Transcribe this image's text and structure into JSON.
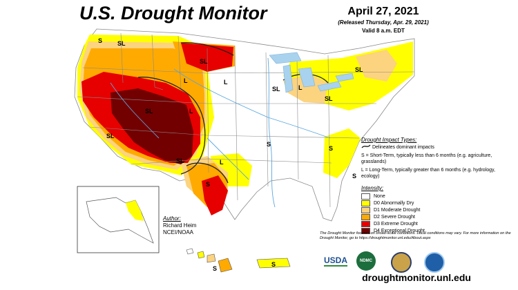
{
  "header": {
    "title": "U.S. Drought Monitor",
    "date": "April 27, 2021",
    "released": "(Released Thursday, Apr. 29, 2021)",
    "valid": "Valid 8 a.m. EDT"
  },
  "impact": {
    "heading": "Drought Impact Types:",
    "dominant": "Delineates dominant impacts",
    "short_term": "S = Short-Term, typically less than 6 months (e.g. agriculture, grasslands)",
    "long_term": "L = Long-Term, typically greater than 6 months (e.g. hydrology, ecology)"
  },
  "intensity": {
    "heading": "Intensity:",
    "levels": [
      {
        "label": "None",
        "color": "#ffffff"
      },
      {
        "label": "D0 Abnormally Dry",
        "color": "#ffff00"
      },
      {
        "label": "D1 Moderate Drought",
        "color": "#fcd37f"
      },
      {
        "label": "D2 Severe Drought",
        "color": "#ffaa00"
      },
      {
        "label": "D3 Extreme Drought",
        "color": "#e60000"
      },
      {
        "label": "D4 Exceptional Drought",
        "color": "#730000"
      }
    ]
  },
  "author": {
    "heading": "Author:",
    "name": "Richard Heim",
    "org": "NCEI/NOAA"
  },
  "disclaimer": "The Drought Monitor focuses on broad-scale conditions. Local conditions may vary. For more information on the Drought Monitor, go to https://droughtmonitor.unl.edu/About.aspx",
  "url": "droughtmonitor.unl.edu",
  "logos": {
    "usda": "USDA",
    "ndmc": "NDMC"
  },
  "map_labels": {
    "s": "S",
    "sl": "SL",
    "l": "L"
  }
}
